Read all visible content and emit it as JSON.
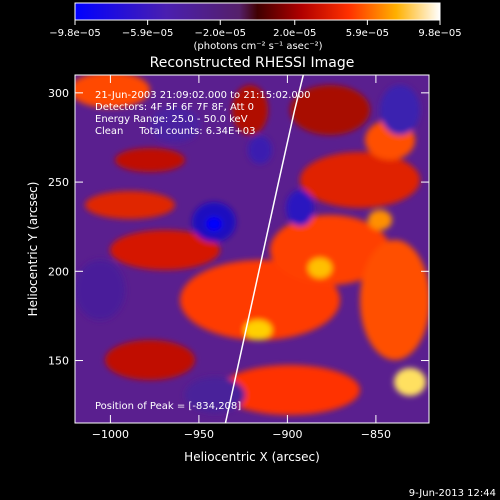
{
  "chart_data": {
    "type": "heatmap",
    "title": "Reconstructed RHESSI Image",
    "xlabel": "Heliocentric X (arcsec)",
    "ylabel": "Heliocentric Y (arcsec)",
    "xlim": [
      -1020,
      -820
    ],
    "ylim": [
      115,
      310
    ],
    "x_ticks": [
      -1000,
      -950,
      -900,
      -850
    ],
    "x_tick_labels": [
      "−1000",
      "−950",
      "−900",
      "−850"
    ],
    "y_ticks": [
      150,
      200,
      250,
      300
    ],
    "y_tick_labels": [
      "150",
      "200",
      "250",
      "300"
    ],
    "colorbar": {
      "range": [
        -9.8e-05,
        9.8e-05
      ],
      "ticks": [
        -9.8e-05,
        -5.9e-05,
        -2e-05,
        2e-05,
        5.9e-05,
        9.8e-05
      ],
      "tick_labels": [
        "−9.8e−05",
        "−5.9e−05",
        "−2.0e−05",
        "2.0e−05",
        "5.9e−05",
        "9.8e−05"
      ],
      "units_label": "(photons cm⁻² s⁻¹ asec⁻²)"
    },
    "annotations": [
      "21-Jun-2003 21:09:02.000 to 21:15:02.000",
      "Detectors: 4F 5F 6F 7F 8F, Att 0",
      "Energy Range: 25.0 - 50.0 keV",
      "Clean     Total counts: 6.34E+03"
    ],
    "peak_label": "Position of Peak = [-834,208]",
    "peak": [
      -834,
      208
    ],
    "limb_curve": [
      [
        -935,
        115
      ],
      [
        -925,
        160
      ],
      [
        -915,
        205
      ],
      [
        -905,
        250
      ],
      [
        -896,
        290
      ],
      [
        -891,
        310
      ]
    ]
  },
  "footer": {
    "timestamp": "9-Jun-2013 12:44"
  }
}
